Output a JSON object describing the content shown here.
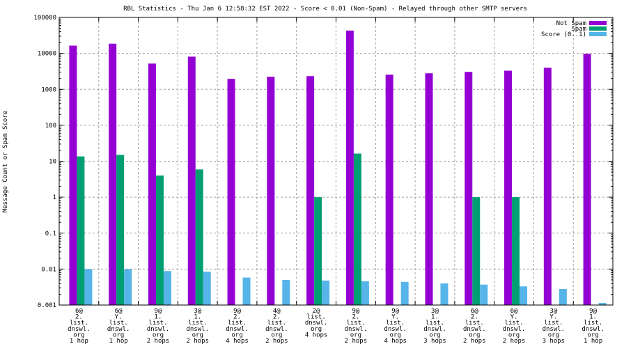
{
  "chart_data": {
    "type": "bar",
    "title": "RBL Statistics - Thu Jan  6 12:58:32 EST 2022 - Score < 0.01 (Non-Spam) - Relayed through other SMTP servers",
    "ylabel": "Message Count or Spam Score",
    "xlabel": "",
    "yscale": "log",
    "ylim": [
      0.001,
      100000
    ],
    "yticks": [
      "100000",
      "10000",
      "1000",
      "100",
      "10",
      "1",
      "0.1",
      "0.01",
      "0.001"
    ],
    "grid": true,
    "legend_position": "top-right",
    "categories": [
      [
        "6@",
        "2.",
        "list.",
        "dnswl.",
        "org",
        "1 hop"
      ],
      [
        "6@",
        "Y.",
        "list.",
        "dnswl.",
        "org",
        "1 hop"
      ],
      [
        "9@",
        "1.",
        "list.",
        "dnswl.",
        "org",
        "2 hops"
      ],
      [
        "3@",
        "1.",
        "list.",
        "dnswl.",
        "org",
        "2 hops"
      ],
      [
        "9@",
        "2.",
        "list.",
        "dnswl.",
        "org",
        "4 hops"
      ],
      [
        "4@",
        "2.",
        "list.",
        "dnswl.",
        "org",
        "2 hops"
      ],
      [
        "2@",
        "list.",
        "dnswl.",
        "org",
        "4 hops"
      ],
      [
        "9@",
        "2.",
        "list.",
        "dnswl.",
        "org",
        "2 hops"
      ],
      [
        "9@",
        "Y.",
        "list.",
        "dnswl.",
        "org",
        "4 hops"
      ],
      [
        "3@",
        "1.",
        "list.",
        "dnswl.",
        "org",
        "3 hops"
      ],
      [
        "6@",
        "2.",
        "list.",
        "dnswl.",
        "org",
        "2 hops"
      ],
      [
        "6@",
        "Y.",
        "list.",
        "dnswl.",
        "org",
        "2 hops"
      ],
      [
        "3@",
        "Y.",
        "list.",
        "dnswl.",
        "org",
        "3 hops"
      ],
      [
        "9@",
        "1.",
        "list.",
        "dnswl.",
        "org",
        "1 hop"
      ]
    ],
    "series": [
      {
        "name": "Not Spam",
        "color": "#9400d3",
        "values": [
          16400,
          18600,
          5200,
          8100,
          1950,
          2230,
          2330,
          43000,
          2550,
          2790,
          3050,
          3300,
          3980,
          9700
        ]
      },
      {
        "name": "Spam",
        "color": "#009e73",
        "values": [
          13.6,
          15,
          4,
          5.9,
          0,
          0,
          1,
          16.3,
          0,
          0,
          1,
          1,
          0,
          0
        ]
      },
      {
        "name": "Score (0..1)",
        "color": "#56b4e9",
        "values": [
          0.01,
          0.01,
          0.0088,
          0.0085,
          0.0058,
          0.005,
          0.0048,
          0.0046,
          0.0044,
          0.004,
          0.0037,
          0.0033,
          0.0028,
          0.00114
        ]
      }
    ]
  }
}
